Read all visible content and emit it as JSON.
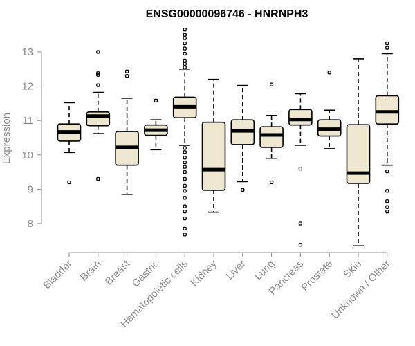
{
  "chart_data": {
    "type": "boxplot",
    "title": "ENSG00000096746 - HNRNPH3",
    "xlabel": "",
    "ylabel": "Expression",
    "ylim": [
      7.1,
      13.7
    ],
    "yticks": [
      8,
      9,
      10,
      11,
      12,
      13
    ],
    "box_color": "#ede7cf",
    "categories": [
      "Bladder",
      "Brain",
      "Breast",
      "Gastric",
      "Hematopoietic cells",
      "Kidney",
      "Liver",
      "Lung",
      "Pancreas",
      "Prostate",
      "Skin",
      "Unknown / Other"
    ],
    "boxes": [
      {
        "name": "Bladder",
        "whisker_low": 10.07,
        "q1": 10.4,
        "median": 10.67,
        "q3": 10.9,
        "whisker_high": 11.52,
        "outliers": [
          9.2
        ]
      },
      {
        "name": "Brain",
        "whisker_low": 10.62,
        "q1": 10.85,
        "median": 11.13,
        "q3": 11.25,
        "whisker_high": 11.82,
        "outliers": [
          9.3,
          12.03,
          12.33,
          12.38,
          13.0
        ]
      },
      {
        "name": "Breast",
        "whisker_low": 8.85,
        "q1": 9.7,
        "median": 10.22,
        "q3": 10.68,
        "whisker_high": 11.65,
        "outliers": [
          12.3,
          12.43
        ]
      },
      {
        "name": "Gastric",
        "whisker_low": 10.15,
        "q1": 10.57,
        "median": 10.72,
        "q3": 10.87,
        "whisker_high": 11.02,
        "outliers": [
          11.58
        ]
      },
      {
        "name": "Hematopoietic cells",
        "whisker_low": 10.28,
        "q1": 11.08,
        "median": 11.4,
        "q3": 11.68,
        "whisker_high": 12.5,
        "outliers": [
          7.68,
          7.85,
          8.15,
          8.35,
          8.5,
          8.75,
          8.95,
          9.1,
          9.3,
          9.5,
          9.65,
          9.78,
          9.92,
          10.08,
          10.2,
          12.55,
          12.65,
          12.75,
          12.95,
          13.1,
          13.25,
          13.4,
          13.5,
          13.65
        ]
      },
      {
        "name": "Kidney",
        "whisker_low": 8.33,
        "q1": 8.97,
        "median": 9.57,
        "q3": 10.95,
        "whisker_high": 12.2,
        "outliers": []
      },
      {
        "name": "Liver",
        "whisker_low": 9.22,
        "q1": 10.3,
        "median": 10.7,
        "q3": 11.02,
        "whisker_high": 12.02,
        "outliers": [
          8.98
        ]
      },
      {
        "name": "Lung",
        "whisker_low": 9.9,
        "q1": 10.22,
        "median": 10.58,
        "q3": 10.82,
        "whisker_high": 11.15,
        "outliers": [
          9.2,
          12.05
        ]
      },
      {
        "name": "Pancreas",
        "whisker_low": 10.28,
        "q1": 10.87,
        "median": 11.03,
        "q3": 11.32,
        "whisker_high": 11.78,
        "outliers": [
          7.38,
          8.0,
          9.6
        ]
      },
      {
        "name": "Prostate",
        "whisker_low": 10.18,
        "q1": 10.55,
        "median": 10.75,
        "q3": 11.02,
        "whisker_high": 11.3,
        "outliers": [
          12.4
        ]
      },
      {
        "name": "Skin",
        "whisker_low": 7.35,
        "q1": 9.17,
        "median": 9.47,
        "q3": 10.88,
        "whisker_high": 12.8,
        "outliers": []
      },
      {
        "name": "Unknown / Other",
        "whisker_low": 9.7,
        "q1": 10.9,
        "median": 11.25,
        "q3": 11.72,
        "whisker_high": 12.95,
        "outliers": [
          8.35,
          8.48,
          8.65,
          8.95,
          9.52,
          13.12,
          13.25
        ]
      }
    ]
  }
}
